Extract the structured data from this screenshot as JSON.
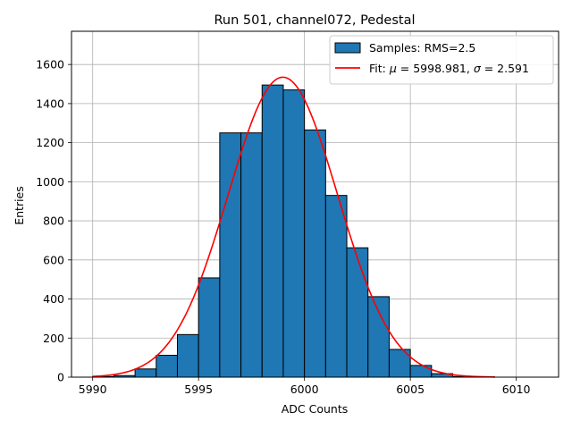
{
  "chart_data": {
    "type": "bar",
    "title": "Run 501, channel072, Pedestal",
    "xlabel": "ADC Counts",
    "ylabel": "Entries",
    "xlim": [
      5989.0,
      6012.0
    ],
    "ylim": [
      0,
      1770
    ],
    "xticks": [
      5990,
      5995,
      6000,
      6005,
      6010
    ],
    "yticks": [
      0,
      200,
      400,
      600,
      800,
      1000,
      1200,
      1400,
      1600
    ],
    "grid": true,
    "legend_position": "top-right",
    "histogram": {
      "name": "Samples: RMS=2.5",
      "color": "#1f77b4",
      "bin_edges": [
        5990,
        5991,
        5992,
        5993,
        5994,
        5995,
        5996,
        5997,
        5998,
        5999,
        6000,
        6001,
        6002,
        6003,
        6004,
        6005,
        6006,
        6007,
        6008,
        6009,
        6010,
        6011
      ],
      "counts": [
        3,
        8,
        42,
        112,
        218,
        508,
        1250,
        1250,
        1495,
        1470,
        1265,
        930,
        662,
        412,
        142,
        60,
        18,
        3,
        0,
        0,
        0
      ]
    },
    "fit": {
      "name": "Fit: μ = 5998.981, σ = 2.591",
      "label_prefix": "Fit: ",
      "mu_symbol": "μ",
      "mu_text": " = 5998.981, ",
      "sigma_symbol": "σ",
      "sigma_text": " = 2.591",
      "color": "#ff0000",
      "mu": 5998.981,
      "sigma": 2.591,
      "amplitude": 1535,
      "x_range": [
        5990,
        6009
      ]
    }
  }
}
